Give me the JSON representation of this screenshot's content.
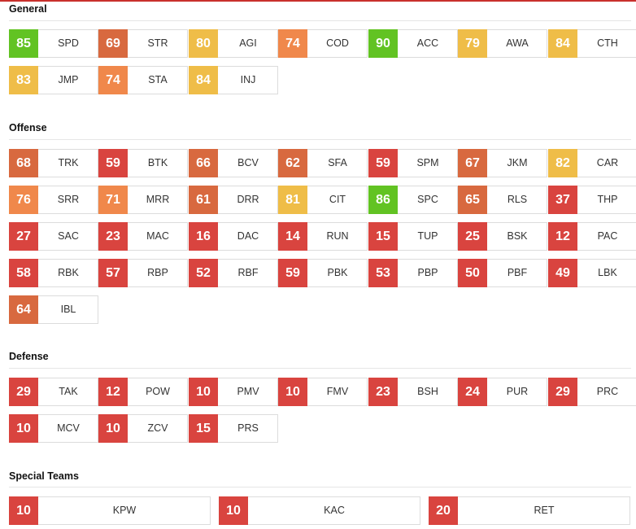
{
  "colors": {
    "red": "#d9443f",
    "rust": "#d8693f",
    "orange": "#f0884b",
    "yellow": "#efbd48",
    "green": "#62c323"
  },
  "sections": [
    {
      "title": "General",
      "attrs": [
        {
          "v": "85",
          "a": "SPD",
          "c": "green"
        },
        {
          "v": "69",
          "a": "STR",
          "c": "rust"
        },
        {
          "v": "80",
          "a": "AGI",
          "c": "yellow"
        },
        {
          "v": "74",
          "a": "COD",
          "c": "orange"
        },
        {
          "v": "90",
          "a": "ACC",
          "c": "green"
        },
        {
          "v": "79",
          "a": "AWA",
          "c": "yellow"
        },
        {
          "v": "84",
          "a": "CTH",
          "c": "yellow"
        },
        {
          "v": "83",
          "a": "JMP",
          "c": "yellow"
        },
        {
          "v": "74",
          "a": "STA",
          "c": "orange"
        },
        {
          "v": "84",
          "a": "INJ",
          "c": "yellow"
        }
      ]
    },
    {
      "title": "Offense",
      "attrs": [
        {
          "v": "68",
          "a": "TRK",
          "c": "rust"
        },
        {
          "v": "59",
          "a": "BTK",
          "c": "red"
        },
        {
          "v": "66",
          "a": "BCV",
          "c": "rust"
        },
        {
          "v": "62",
          "a": "SFA",
          "c": "rust"
        },
        {
          "v": "59",
          "a": "SPM",
          "c": "red"
        },
        {
          "v": "67",
          "a": "JKM",
          "c": "rust"
        },
        {
          "v": "82",
          "a": "CAR",
          "c": "yellow"
        },
        {
          "v": "76",
          "a": "SRR",
          "c": "orange"
        },
        {
          "v": "71",
          "a": "MRR",
          "c": "orange"
        },
        {
          "v": "61",
          "a": "DRR",
          "c": "rust"
        },
        {
          "v": "81",
          "a": "CIT",
          "c": "yellow"
        },
        {
          "v": "86",
          "a": "SPC",
          "c": "green"
        },
        {
          "v": "65",
          "a": "RLS",
          "c": "rust"
        },
        {
          "v": "37",
          "a": "THP",
          "c": "red"
        },
        {
          "v": "27",
          "a": "SAC",
          "c": "red"
        },
        {
          "v": "23",
          "a": "MAC",
          "c": "red"
        },
        {
          "v": "16",
          "a": "DAC",
          "c": "red"
        },
        {
          "v": "14",
          "a": "RUN",
          "c": "red"
        },
        {
          "v": "15",
          "a": "TUP",
          "c": "red"
        },
        {
          "v": "25",
          "a": "BSK",
          "c": "red"
        },
        {
          "v": "12",
          "a": "PAC",
          "c": "red"
        },
        {
          "v": "58",
          "a": "RBK",
          "c": "red"
        },
        {
          "v": "57",
          "a": "RBP",
          "c": "red"
        },
        {
          "v": "52",
          "a": "RBF",
          "c": "red"
        },
        {
          "v": "59",
          "a": "PBK",
          "c": "red"
        },
        {
          "v": "53",
          "a": "PBP",
          "c": "red"
        },
        {
          "v": "50",
          "a": "PBF",
          "c": "red"
        },
        {
          "v": "49",
          "a": "LBK",
          "c": "red"
        },
        {
          "v": "64",
          "a": "IBL",
          "c": "rust"
        }
      ]
    },
    {
      "title": "Defense",
      "attrs": [
        {
          "v": "29",
          "a": "TAK",
          "c": "red"
        },
        {
          "v": "12",
          "a": "POW",
          "c": "red"
        },
        {
          "v": "10",
          "a": "PMV",
          "c": "red"
        },
        {
          "v": "10",
          "a": "FMV",
          "c": "red"
        },
        {
          "v": "23",
          "a": "BSH",
          "c": "red"
        },
        {
          "v": "24",
          "a": "PUR",
          "c": "red"
        },
        {
          "v": "29",
          "a": "PRC",
          "c": "red"
        },
        {
          "v": "10",
          "a": "MCV",
          "c": "red"
        },
        {
          "v": "10",
          "a": "ZCV",
          "c": "red"
        },
        {
          "v": "15",
          "a": "PRS",
          "c": "red"
        }
      ]
    },
    {
      "title": "Special Teams",
      "attrs": [
        {
          "v": "10",
          "a": "KPW",
          "c": "red"
        },
        {
          "v": "10",
          "a": "KAC",
          "c": "red"
        },
        {
          "v": "20",
          "a": "RET",
          "c": "red"
        }
      ]
    }
  ]
}
